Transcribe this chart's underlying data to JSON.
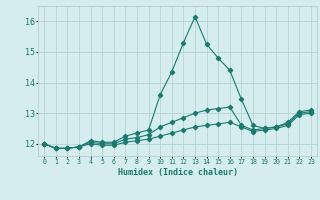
{
  "x": [
    0,
    1,
    2,
    3,
    4,
    5,
    6,
    7,
    8,
    9,
    10,
    11,
    12,
    13,
    14,
    15,
    16,
    17,
    18,
    19,
    20,
    21,
    22,
    23
  ],
  "y_max": [
    12.0,
    11.85,
    11.85,
    11.9,
    12.1,
    12.05,
    12.05,
    12.25,
    12.35,
    12.45,
    13.6,
    14.35,
    15.3,
    16.15,
    15.25,
    14.8,
    14.4,
    13.45,
    12.6,
    12.5,
    12.55,
    12.7,
    13.05,
    13.1
  ],
  "y_mean": [
    12.0,
    11.85,
    11.85,
    11.9,
    12.05,
    12.0,
    12.0,
    12.15,
    12.2,
    12.3,
    12.55,
    12.7,
    12.85,
    13.0,
    13.1,
    13.15,
    13.2,
    12.6,
    12.45,
    12.5,
    12.55,
    12.65,
    13.0,
    13.05
  ],
  "y_min": [
    12.0,
    11.85,
    11.85,
    11.9,
    12.0,
    11.95,
    11.95,
    12.05,
    12.1,
    12.15,
    12.25,
    12.35,
    12.45,
    12.55,
    12.6,
    12.65,
    12.7,
    12.55,
    12.4,
    12.45,
    12.5,
    12.6,
    12.95,
    13.0
  ],
  "line_color": "#1a7a6e",
  "bg_color": "#d6edef",
  "grid_color": "#b0d0d0",
  "xlabel": "Humidex (Indice chaleur)",
  "xticks": [
    0,
    1,
    2,
    3,
    4,
    5,
    6,
    7,
    8,
    9,
    10,
    11,
    12,
    13,
    14,
    15,
    16,
    17,
    18,
    19,
    20,
    21,
    22,
    23
  ],
  "yticks": [
    12,
    13,
    14,
    15,
    16
  ],
  "ylim": [
    11.6,
    16.5
  ],
  "xlim": [
    -0.5,
    23.5
  ],
  "marker_size": 2.2,
  "line_width": 0.8,
  "xlabel_fontsize": 6.0,
  "xtick_fontsize": 4.8,
  "ytick_fontsize": 6.0
}
